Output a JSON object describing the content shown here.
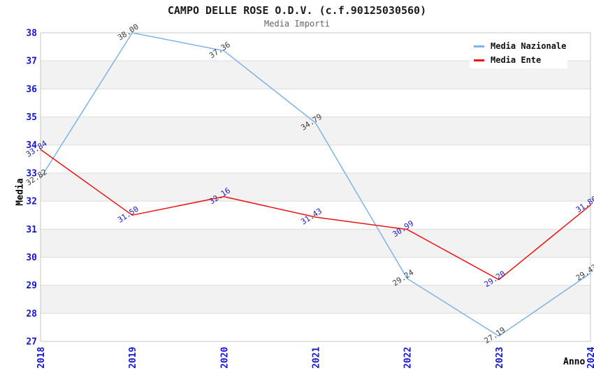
{
  "chart_data": {
    "type": "line",
    "title": "CAMPO DELLE ROSE O.D.V. (c.f.90125030560)",
    "subtitle": "Media Importi",
    "xlabel": "Anno",
    "ylabel": "Media",
    "categories": [
      "2018",
      "2019",
      "2020",
      "2021",
      "2022",
      "2023",
      "2024"
    ],
    "ylim": [
      27,
      38
    ],
    "ytick_step": 1,
    "grid": "horizontal-bands-alternating",
    "legend_position": "top-right",
    "legend_entries": [
      "Media Nazionale",
      "Media Ente"
    ],
    "series": [
      {
        "name": "Media Nazionale",
        "color": "#7EB3E6",
        "label_color": "#3C3C3C",
        "values": [
          32.82,
          38.0,
          37.36,
          34.79,
          29.24,
          27.19,
          29.43
        ]
      },
      {
        "name": "Media Ente",
        "color": "#EE1111",
        "label_color": "#1A1ABB",
        "values": [
          33.84,
          31.5,
          32.16,
          31.43,
          30.99,
          29.2,
          31.86
        ]
      }
    ],
    "colors": {
      "tick_label": "#1414CC",
      "band": "#F2F2F2",
      "grid": "#DCDCDC",
      "border": "#C6C6C6",
      "title": "#1C1C1C",
      "subtitle": "#666666",
      "axis_title": "#000000",
      "legend_text": "#111111",
      "background": "#FFFFFF"
    }
  }
}
